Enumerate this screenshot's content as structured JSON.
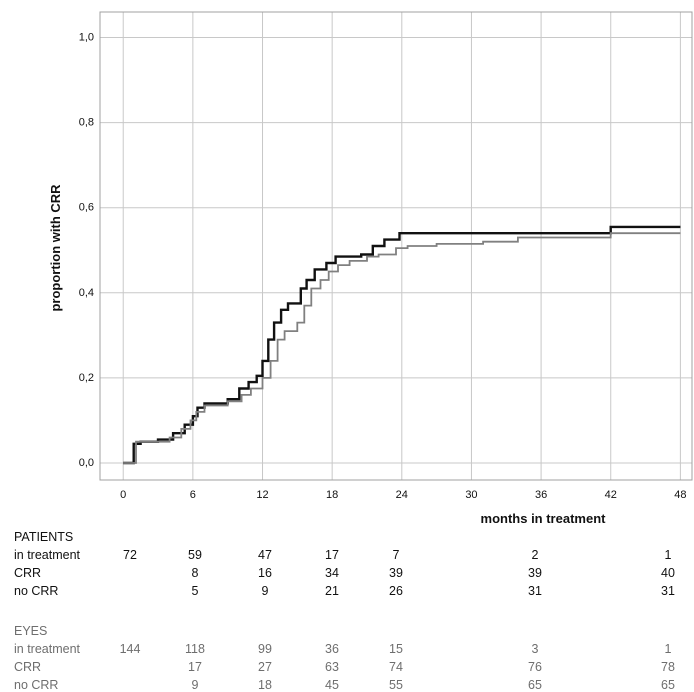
{
  "chart_data": {
    "type": "line",
    "title": "",
    "xlabel": "months in treatment",
    "ylabel": "proportion with CRR",
    "xlim": [
      -2,
      49
    ],
    "ylim": [
      -0.04,
      1.06
    ],
    "x_ticks": [
      0,
      6,
      12,
      18,
      24,
      30,
      36,
      42,
      48
    ],
    "x_tick_labels": [
      "0",
      "6",
      "12",
      "18",
      "24",
      "30",
      "36",
      "42",
      "48"
    ],
    "y_ticks": [
      0,
      0.2,
      0.4,
      0.6,
      0.8,
      1.0
    ],
    "y_tick_labels": [
      "0,0",
      "0,2",
      "0,4",
      "0,6",
      "0,8",
      "1,0"
    ],
    "grid": true,
    "series": [
      {
        "color": "#111111",
        "steps": [
          [
            0,
            0
          ],
          [
            0.9,
            0.045
          ],
          [
            1.5,
            0.05
          ],
          [
            3,
            0.055
          ],
          [
            4.3,
            0.07
          ],
          [
            5.3,
            0.09
          ],
          [
            6,
            0.11
          ],
          [
            6.4,
            0.13
          ],
          [
            7,
            0.14
          ],
          [
            9,
            0.15
          ],
          [
            10,
            0.175
          ],
          [
            10.8,
            0.19
          ],
          [
            11.5,
            0.205
          ],
          [
            12,
            0.24
          ],
          [
            12.5,
            0.29
          ],
          [
            13,
            0.33
          ],
          [
            13.6,
            0.36
          ],
          [
            14.2,
            0.375
          ],
          [
            15.3,
            0.41
          ],
          [
            15.8,
            0.43
          ],
          [
            16.5,
            0.455
          ],
          [
            17.5,
            0.47
          ],
          [
            18.3,
            0.485
          ],
          [
            20.5,
            0.49
          ],
          [
            21.5,
            0.51
          ],
          [
            22.5,
            0.525
          ],
          [
            23.8,
            0.54
          ],
          [
            42,
            0.555
          ],
          [
            48,
            0.555
          ]
        ]
      },
      {
        "color": "#808080",
        "steps": [
          [
            0,
            0
          ],
          [
            1.1,
            0.05
          ],
          [
            4,
            0.06
          ],
          [
            5,
            0.08
          ],
          [
            5.8,
            0.1
          ],
          [
            6.3,
            0.12
          ],
          [
            7,
            0.135
          ],
          [
            9,
            0.145
          ],
          [
            10.2,
            0.16
          ],
          [
            11,
            0.175
          ],
          [
            12,
            0.2
          ],
          [
            12.7,
            0.24
          ],
          [
            13.3,
            0.29
          ],
          [
            13.9,
            0.31
          ],
          [
            15,
            0.33
          ],
          [
            15.6,
            0.37
          ],
          [
            16.2,
            0.41
          ],
          [
            17,
            0.43
          ],
          [
            17.7,
            0.45
          ],
          [
            18.5,
            0.465
          ],
          [
            19.5,
            0.475
          ],
          [
            21,
            0.485
          ],
          [
            22,
            0.49
          ],
          [
            23.5,
            0.505
          ],
          [
            24.5,
            0.51
          ],
          [
            27,
            0.515
          ],
          [
            31,
            0.52
          ],
          [
            34,
            0.53
          ],
          [
            42,
            0.54
          ],
          [
            48,
            0.54
          ]
        ]
      }
    ]
  },
  "risk_table": {
    "patients": {
      "title": "PATIENTS",
      "rows": [
        {
          "label": "in treatment",
          "values": [
            "72",
            "59",
            "47",
            "17",
            "7",
            "2",
            "1"
          ]
        },
        {
          "label": "CRR",
          "values": [
            "",
            "8",
            "16",
            "34",
            "39",
            "39",
            "40"
          ]
        },
        {
          "label": "no CRR",
          "values": [
            "",
            "5",
            "9",
            "21",
            "26",
            "31",
            "31"
          ]
        }
      ]
    },
    "eyes": {
      "title": "EYES",
      "rows": [
        {
          "label": "in treatment",
          "values": [
            "144",
            "118",
            "99",
            "36",
            "15",
            "3",
            "1"
          ]
        },
        {
          "label": "CRR",
          "values": [
            "",
            "17",
            "27",
            "63",
            "74",
            "76",
            "78"
          ]
        },
        {
          "label": "no CRR",
          "values": [
            "",
            "9",
            "18",
            "45",
            "55",
            "65",
            "65"
          ]
        }
      ]
    }
  }
}
